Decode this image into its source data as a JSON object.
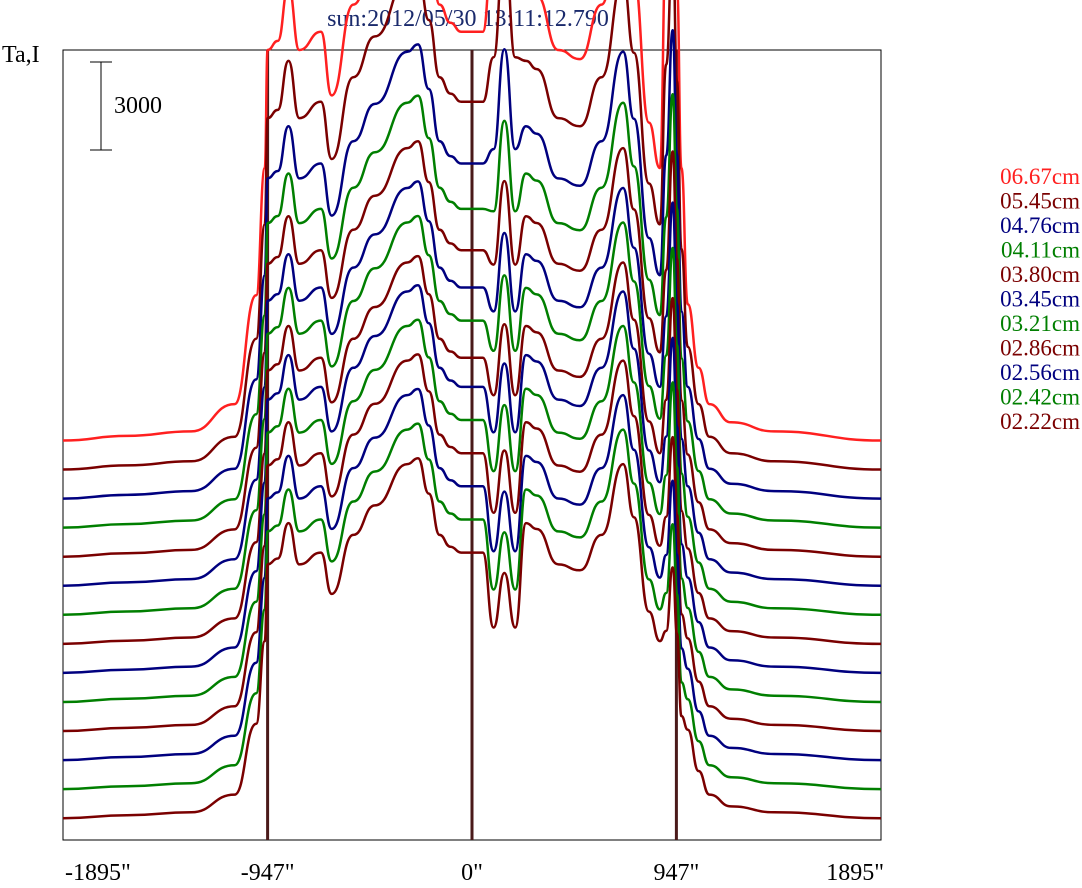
{
  "chart_data": {
    "type": "line",
    "title": "sun:2012/05/30 13:11:12.790",
    "ylabel": "Ta,I",
    "scale_bar_label": "3000",
    "xlim": [
      -1895,
      1895
    ],
    "x_ticks": [
      {
        "value": -1895,
        "label": "-1895\""
      },
      {
        "value": -947,
        "label": "-947\""
      },
      {
        "value": 0,
        "label": "0\""
      },
      {
        "value": 947,
        "label": "947\""
      },
      {
        "value": 1895,
        "label": "1895\""
      }
    ],
    "vertical_lines": [
      -947,
      0,
      947
    ],
    "profile": {
      "x": [
        -1895,
        -1600,
        -1300,
        -1100,
        -1000,
        -960,
        -947,
        -900,
        -850,
        -800,
        -700,
        -650,
        -550,
        -450,
        -300,
        -250,
        -200,
        -150,
        -100,
        -50,
        0,
        50,
        100,
        150,
        200,
        250,
        300,
        400,
        500,
        600,
        700,
        750,
        820,
        870,
        900,
        930,
        950,
        970,
        1000,
        1050,
        1100,
        1200,
        1400,
        1895
      ],
      "values": [
        0,
        50,
        100,
        400,
        1600,
        3000,
        4300,
        4400,
        5000,
        4300,
        4500,
        3800,
        4800,
        5300,
        6000,
        6100,
        5500,
        4800,
        4600,
        4500,
        4500,
        4500,
        5600,
        7200,
        5600,
        5000,
        4900,
        4300,
        4200,
        4800,
        6000,
        5100,
        3500,
        3000,
        5500,
        6800,
        5000,
        3000,
        1500,
        800,
        400,
        200,
        100,
        0
      ]
    },
    "series": [
      {
        "name": "06.67cm",
        "color": "#ff2020",
        "level": 3700,
        "amplitude": 1.0,
        "peak": 1.0,
        "limb": 1.0
      },
      {
        "name": "05.45cm",
        "color": "#7a0000",
        "level": 3380,
        "amplitude": 0.9,
        "peak": 0.78,
        "limb": 0.9
      },
      {
        "name": "04.76cm",
        "color": "#00007f",
        "level": 3060,
        "amplitude": 0.82,
        "peak": 0.64,
        "limb": 0.85
      },
      {
        "name": "04.11cm",
        "color": "#007f00",
        "level": 2740,
        "amplitude": 0.78,
        "peak": 0.55,
        "limb": 0.8
      },
      {
        "name": "03.80cm",
        "color": "#7a0000",
        "level": 2420,
        "amplitude": 0.75,
        "peak": 0.48,
        "limb": 0.75
      },
      {
        "name": "03.45cm",
        "color": "#00007f",
        "level": 2100,
        "amplitude": 0.73,
        "peak": 0.42,
        "limb": 0.7
      },
      {
        "name": "03.21cm",
        "color": "#007f00",
        "level": 1780,
        "amplitude": 0.72,
        "peak": 0.38,
        "limb": 0.65
      },
      {
        "name": "02.86cm",
        "color": "#7a0000",
        "level": 1460,
        "amplitude": 0.7,
        "peak": 0.33,
        "limb": 0.6
      },
      {
        "name": "02.56cm",
        "color": "#00007f",
        "level": 1140,
        "amplitude": 0.7,
        "peak": 0.28,
        "limb": 0.55
      },
      {
        "name": "02.42cm",
        "color": "#007f00",
        "level": 820,
        "amplitude": 0.69,
        "peak": 0.24,
        "limb": 0.5
      },
      {
        "name": "02.22cm",
        "color": "#7a0000",
        "level": 500,
        "amplitude": 0.68,
        "peak": 0.18,
        "limb": 0.4
      },
      {
        "name": "",
        "color": "#00007f",
        "level": 180,
        "amplitude": 0.67,
        "peak": 0.14,
        "limb": 0.35
      },
      {
        "name": "",
        "color": "#007f00",
        "level": -140,
        "amplitude": 0.66,
        "peak": 0.1,
        "limb": 0.3
      },
      {
        "name": "",
        "color": "#7a0000",
        "level": -460,
        "amplitude": 0.65,
        "peak": 0.06,
        "limb": 0.25
      }
    ],
    "ylim": [
      -700,
      8000
    ]
  }
}
